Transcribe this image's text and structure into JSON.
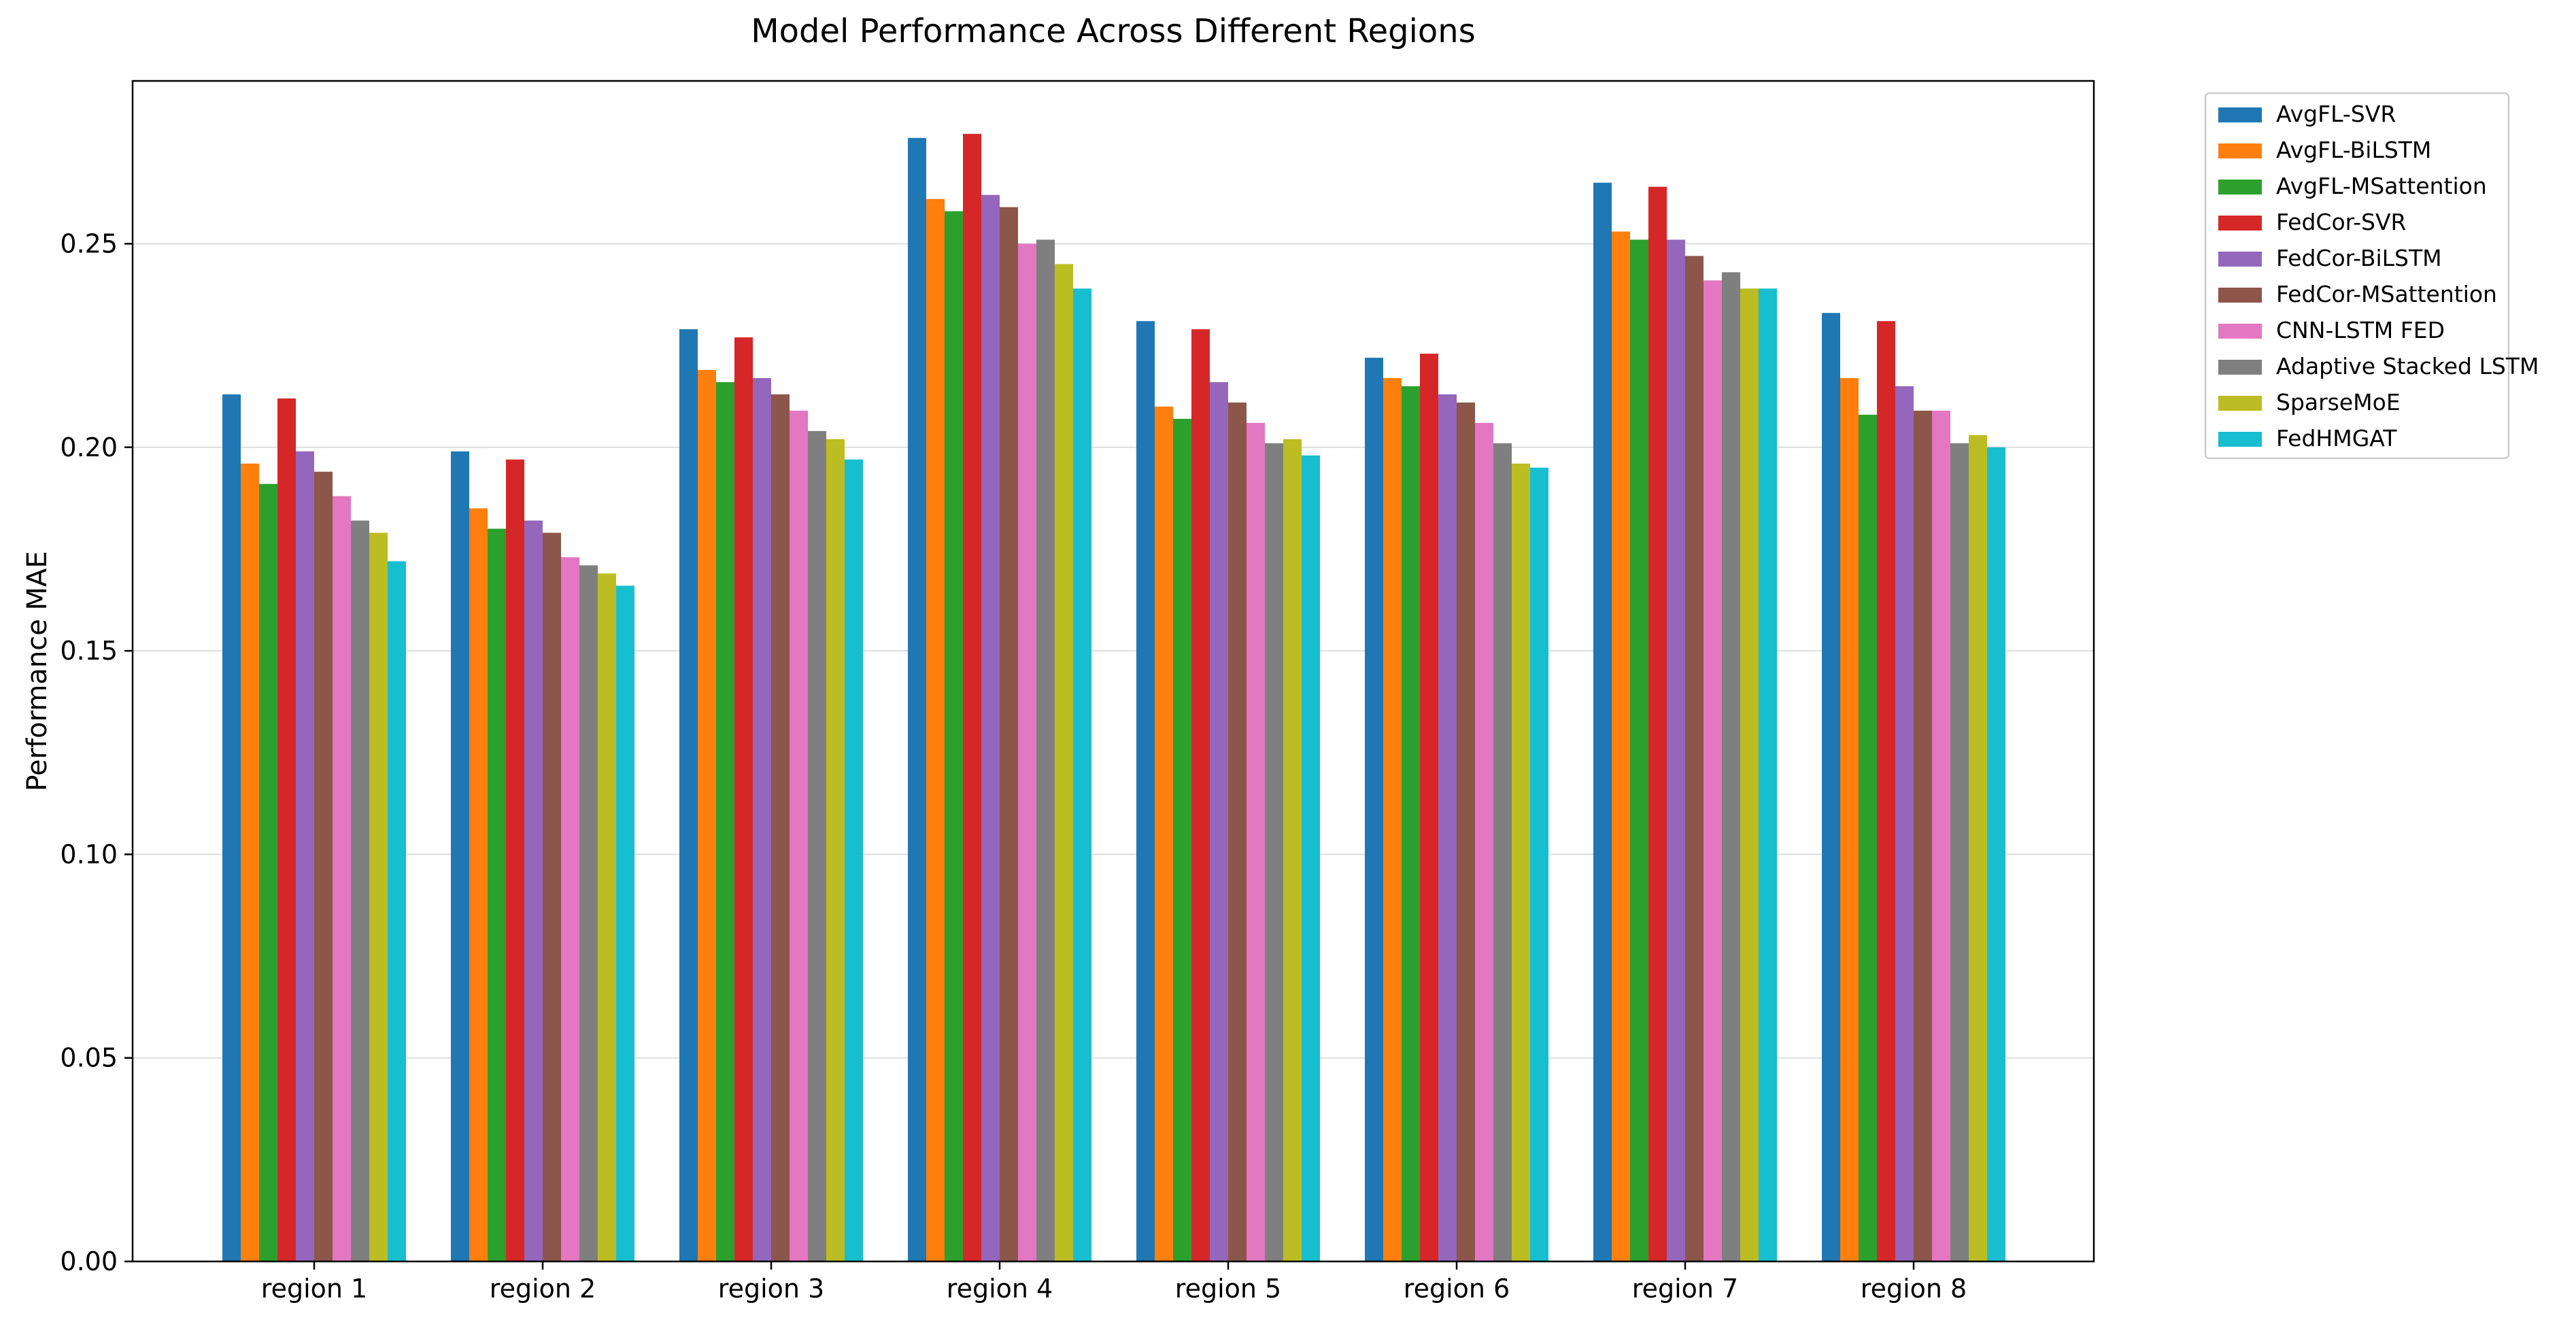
{
  "chart_data": {
    "type": "bar",
    "title": "Model Performance Across Different Regions",
    "xlabel": "",
    "ylabel": "Performance MAE",
    "ylim": [
      0,
      0.29
    ],
    "yticks": [
      "0.00",
      "0.05",
      "0.10",
      "0.15",
      "0.20",
      "0.25"
    ],
    "grid": "horizontal",
    "legend_position": "outside-top-right",
    "categories": [
      "region 1",
      "region 2",
      "region 3",
      "region 4",
      "region 5",
      "region 6",
      "region 7",
      "region 8"
    ],
    "series": [
      {
        "name": "AvgFL-SVR",
        "color": "#1f77b4",
        "values": [
          0.213,
          0.199,
          0.229,
          0.276,
          0.231,
          0.222,
          0.265,
          0.233
        ]
      },
      {
        "name": "AvgFL-BiLSTM",
        "color": "#ff7f0e",
        "values": [
          0.196,
          0.185,
          0.219,
          0.261,
          0.21,
          0.217,
          0.253,
          0.217
        ]
      },
      {
        "name": "AvgFL-MSattention",
        "color": "#2ca02c",
        "values": [
          0.191,
          0.18,
          0.216,
          0.258,
          0.207,
          0.215,
          0.251,
          0.208
        ]
      },
      {
        "name": "FedCor-SVR",
        "color": "#d62728",
        "values": [
          0.212,
          0.197,
          0.227,
          0.277,
          0.229,
          0.223,
          0.264,
          0.231
        ]
      },
      {
        "name": "FedCor-BiLSTM",
        "color": "#9467bd",
        "values": [
          0.199,
          0.182,
          0.217,
          0.262,
          0.216,
          0.213,
          0.251,
          0.215
        ]
      },
      {
        "name": "FedCor-MSattention",
        "color": "#8c564b",
        "values": [
          0.194,
          0.179,
          0.213,
          0.259,
          0.211,
          0.211,
          0.247,
          0.209
        ]
      },
      {
        "name": "CNN-LSTM FED",
        "color": "#e377c2",
        "values": [
          0.188,
          0.173,
          0.209,
          0.25,
          0.206,
          0.206,
          0.241,
          0.209
        ]
      },
      {
        "name": "Adaptive Stacked LSTM",
        "color": "#7f7f7f",
        "values": [
          0.182,
          0.171,
          0.204,
          0.251,
          0.201,
          0.201,
          0.243,
          0.201
        ]
      },
      {
        "name": "SparseMoE",
        "color": "#bcbd22",
        "values": [
          0.179,
          0.169,
          0.202,
          0.245,
          0.202,
          0.196,
          0.239,
          0.203
        ]
      },
      {
        "name": "FedHMGAT",
        "color": "#17becf",
        "values": [
          0.172,
          0.166,
          0.197,
          0.239,
          0.198,
          0.195,
          0.239,
          0.2
        ]
      }
    ]
  }
}
